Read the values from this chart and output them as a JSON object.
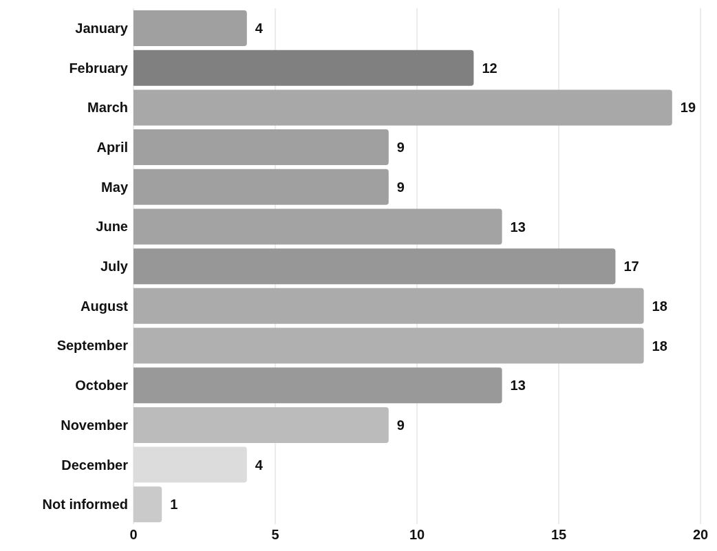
{
  "chart_data": {
    "type": "bar",
    "orientation": "horizontal",
    "categories": [
      "January",
      "February",
      "March",
      "April",
      "May",
      "June",
      "July",
      "August",
      "September",
      "October",
      "November",
      "December",
      "Not informed"
    ],
    "values": [
      4,
      12,
      19,
      9,
      9,
      13,
      17,
      18,
      18,
      13,
      9,
      4,
      1
    ],
    "colors": [
      "#a0a0a0",
      "#808080",
      "#a8a8a8",
      "#a0a0a0",
      "#a0a0a0",
      "#a3a3a3",
      "#979797",
      "#ababab",
      "#b0b0b0",
      "#999999",
      "#bbbbbb",
      "#dcdcdc",
      "#cacaca"
    ],
    "xlim": [
      0,
      20
    ],
    "xticks": [
      0,
      5,
      10,
      15,
      20
    ],
    "grid": "x",
    "data_labels": true
  }
}
